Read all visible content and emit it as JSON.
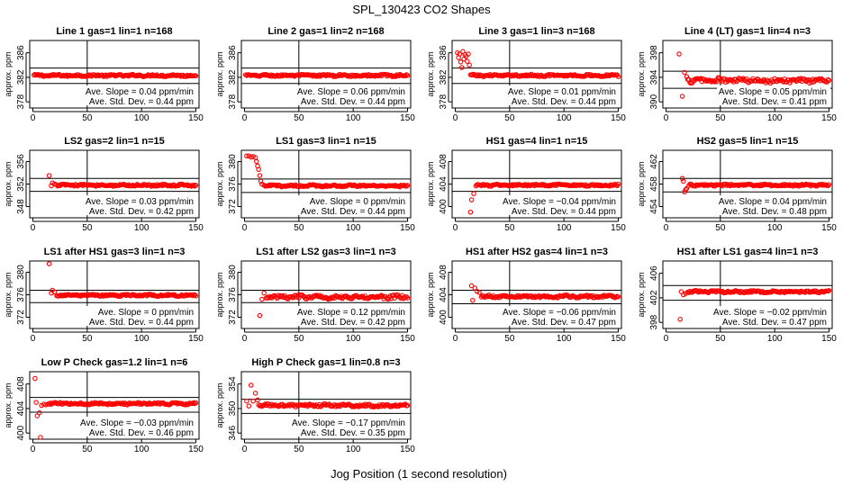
{
  "figure": {
    "title": "SPL_130423  CO2 Shapes",
    "xlabel": "Jog Position (1 second resolution)"
  },
  "chart_data": [
    {
      "type": "scatter",
      "title": "Line 1 gas=1 lin=1 n=168",
      "ylabel": "approx. ppm",
      "xlim": [
        0,
        150
      ],
      "xticks": [
        0,
        50,
        100,
        150
      ],
      "ylim": [
        377,
        388
      ],
      "yticks": [
        378,
        382,
        386
      ],
      "hlines": [
        383.5,
        381.0
      ],
      "vline": 50,
      "slope": "Ave. Slope = 0.04  ppm/min",
      "sd": "Ave. Std. Dev. = 0.44  ppm",
      "base": 382.3,
      "noise": 0.15,
      "startX": 1,
      "points": []
    },
    {
      "type": "scatter",
      "title": "Line 2 gas=1 lin=2 n=168",
      "ylabel": "approx. ppm",
      "xlim": [
        0,
        150
      ],
      "xticks": [
        0,
        50,
        100,
        150
      ],
      "ylim": [
        377,
        388
      ],
      "yticks": [
        378,
        382,
        386
      ],
      "hlines": [
        383.5,
        381.0
      ],
      "vline": 50,
      "slope": "Ave. Slope = 0.06  ppm/min",
      "sd": "Ave. Std. Dev. = 0.44  ppm",
      "base": 382.3,
      "noise": 0.15,
      "startX": 1,
      "points": []
    },
    {
      "type": "scatter",
      "title": "Line 3 gas=1 lin=3 n=168",
      "ylabel": "approx. ppm",
      "xlim": [
        0,
        150
      ],
      "xticks": [
        0,
        50,
        100,
        150
      ],
      "ylim": [
        377,
        388
      ],
      "yticks": [
        378,
        382,
        386
      ],
      "hlines": [
        383.5,
        381.0
      ],
      "vline": 50,
      "slope": "Ave. Slope = 0.01  ppm/min",
      "sd": "Ave. Std. Dev. = 0.44  ppm",
      "base": 382.3,
      "noise": 0.15,
      "startX": 14,
      "points": [
        [
          2,
          386.0
        ],
        [
          3,
          385.2
        ],
        [
          4,
          385.8
        ],
        [
          5,
          384.5
        ],
        [
          6,
          383.6
        ],
        [
          7,
          386.2
        ],
        [
          8,
          385.0
        ],
        [
          9,
          385.7
        ],
        [
          10,
          385.4
        ],
        [
          11,
          384.6
        ],
        [
          12,
          385.8
        ],
        [
          13,
          384.0
        ]
      ]
    },
    {
      "type": "scatter",
      "title": "Line 4 (LT) gas=1 lin=4 n=3",
      "ylabel": "approx. ppm",
      "xlim": [
        0,
        150
      ],
      "xticks": [
        0,
        50,
        100,
        150
      ],
      "ylim": [
        389,
        400
      ],
      "yticks": [
        390,
        394,
        398
      ],
      "hlines": [
        395.0,
        392.2
      ],
      "vline": 50,
      "slope": "Ave. Slope = 0.05  ppm/min",
      "sd": "Ave. Std. Dev. = 0.41  ppm",
      "base": 393.5,
      "noise": 0.35,
      "startX": 20,
      "points": [
        [
          12,
          397.8
        ],
        [
          15,
          390.9
        ],
        [
          17,
          394.8
        ],
        [
          19,
          394.1
        ]
      ]
    },
    {
      "type": "scatter",
      "title": "LS2 gas=2 lin=1 n=15",
      "ylabel": "approx. ppm",
      "xlim": [
        0,
        150
      ],
      "xticks": [
        0,
        50,
        100,
        150
      ],
      "ylim": [
        346,
        358
      ],
      "yticks": [
        348,
        352,
        356
      ],
      "hlines": [
        353.0,
        350.7
      ],
      "vline": 50,
      "slope": "Ave. Slope = 0.03  ppm/min",
      "sd": "Ave. Std. Dev. = 0.42  ppm",
      "base": 351.8,
      "noise": 0.15,
      "startX": 22,
      "points": [
        [
          15,
          353.5
        ],
        [
          17,
          351.7
        ],
        [
          18,
          352.2
        ],
        [
          20,
          352.0
        ]
      ]
    },
    {
      "type": "scatter",
      "title": "LS1 gas=3 lin=1 n=15",
      "ylabel": "approx. ppm",
      "xlim": [
        0,
        150
      ],
      "xticks": [
        0,
        50,
        100,
        150
      ],
      "ylim": [
        370,
        382
      ],
      "yticks": [
        372,
        376,
        380
      ],
      "hlines": [
        376.9,
        374.5
      ],
      "vline": 50,
      "slope": "Ave. Slope = 0  ppm/min",
      "sd": "Ave. Std. Dev. = 0.44  ppm",
      "base": 375.7,
      "noise": 0.15,
      "startX": 18,
      "points": [
        [
          2,
          381.0
        ],
        [
          4,
          381.0
        ],
        [
          6,
          380.8
        ],
        [
          8,
          380.9
        ],
        [
          10,
          380.7
        ],
        [
          11,
          380.0
        ],
        [
          12,
          379.2
        ],
        [
          13,
          378.6
        ],
        [
          14,
          377.5
        ],
        [
          15,
          376.5
        ],
        [
          16,
          376.0
        ]
      ]
    },
    {
      "type": "scatter",
      "title": "HS1 gas=4 lin=1 n=15",
      "ylabel": "approx. ppm",
      "xlim": [
        0,
        150
      ],
      "xticks": [
        0,
        50,
        100,
        150
      ],
      "ylim": [
        398,
        410
      ],
      "yticks": [
        400,
        404,
        408
      ],
      "hlines": [
        405.0,
        402.7
      ],
      "vline": 50,
      "slope": "Ave. Slope = −0.04  ppm/min",
      "sd": "Ave. Std. Dev. = 0.44  ppm",
      "base": 403.8,
      "noise": 0.15,
      "startX": 19,
      "points": [
        [
          14,
          399.0
        ],
        [
          15,
          401.2
        ],
        [
          17,
          402.3
        ]
      ]
    },
    {
      "type": "scatter",
      "title": "HS2 gas=5 lin=1 n=15",
      "ylabel": "approx. ppm",
      "xlim": [
        0,
        150
      ],
      "xticks": [
        0,
        50,
        100,
        150
      ],
      "ylim": [
        452,
        464
      ],
      "yticks": [
        454,
        458,
        462
      ],
      "hlines": [
        459.0,
        456.6
      ],
      "vline": 50,
      "slope": "Ave. Slope = 0.04  ppm/min",
      "sd": "Ave. Std. Dev. = 0.48  ppm",
      "base": 457.8,
      "noise": 0.15,
      "startX": 21,
      "points": [
        [
          15,
          459.0
        ],
        [
          16,
          458.5
        ],
        [
          17,
          456.6
        ],
        [
          18,
          457.0
        ],
        [
          19,
          457.2
        ]
      ]
    },
    {
      "type": "scatter",
      "title": "LS1 after HS1 gas=3 lin=1 n=3",
      "ylabel": "approx. ppm",
      "xlim": [
        0,
        150
      ],
      "xticks": [
        0,
        50,
        100,
        150
      ],
      "ylim": [
        370,
        382
      ],
      "yticks": [
        372,
        376,
        380
      ],
      "hlines": [
        376.8,
        374.6
      ],
      "vline": 50,
      "slope": "Ave. Slope = 0  ppm/min",
      "sd": "Ave. Std. Dev. = 0.44  ppm",
      "base": 375.9,
      "noise": 0.15,
      "startX": 22,
      "points": [
        [
          15,
          381.5
        ],
        [
          17,
          376.3
        ],
        [
          18,
          376.8
        ],
        [
          20,
          376.5
        ]
      ]
    },
    {
      "type": "scatter",
      "title": "LS1 after LS2 gas=3 lin=1 n=3",
      "ylabel": "approx. ppm",
      "xlim": [
        0,
        150
      ],
      "xticks": [
        0,
        50,
        100,
        150
      ],
      "ylim": [
        370,
        382
      ],
      "yticks": [
        372,
        376,
        380
      ],
      "hlines": [
        376.8,
        374.6
      ],
      "vline": 50,
      "slope": "Ave. Slope = 0.12  ppm/min",
      "sd": "Ave. Std. Dev. = 0.42  ppm",
      "base": 375.6,
      "noise": 0.3,
      "startX": 20,
      "points": [
        [
          14,
          372.3
        ],
        [
          16,
          375.2
        ],
        [
          18,
          376.3
        ]
      ]
    },
    {
      "type": "scatter",
      "title": "HS1 after HS2 gas=4 lin=1 n=3",
      "ylabel": "approx. ppm",
      "xlim": [
        0,
        150
      ],
      "xticks": [
        0,
        50,
        100,
        150
      ],
      "ylim": [
        398,
        410
      ],
      "yticks": [
        400,
        404,
        408
      ],
      "hlines": [
        404.8,
        402.4
      ],
      "vline": 50,
      "slope": "Ave. Slope = −0.06  ppm/min",
      "sd": "Ave. Std. Dev. = 0.47  ppm",
      "base": 403.7,
      "noise": 0.2,
      "startX": 24,
      "points": [
        [
          15,
          405.6
        ],
        [
          16,
          403.0
        ],
        [
          18,
          405.2
        ],
        [
          20,
          404.6
        ],
        [
          22,
          404.4
        ]
      ]
    },
    {
      "type": "scatter",
      "title": "HS1 after LS1 gas=4 lin=1 n=3",
      "ylabel": "approx. ppm",
      "xlim": [
        0,
        150
      ],
      "xticks": [
        0,
        50,
        100,
        150
      ],
      "ylim": [
        397,
        408
      ],
      "yticks": [
        398,
        402,
        406
      ],
      "hlines": [
        404.0,
        401.6
      ],
      "vline": 50,
      "slope": "Ave. Slope = −0.02  ppm/min",
      "sd": "Ave. Std. Dev. = 0.47  ppm",
      "base": 403.0,
      "noise": 0.15,
      "startX": 20,
      "points": [
        [
          13,
          398.5
        ],
        [
          14,
          403.0
        ],
        [
          16,
          402.5
        ],
        [
          18,
          402.7
        ]
      ]
    },
    {
      "type": "scatter",
      "title": "Low P Check gas=1.2 lin=1 n=6",
      "ylabel": "approx. ppm",
      "xlim": [
        0,
        150
      ],
      "xticks": [
        0,
        50,
        100,
        150
      ],
      "ylim": [
        399,
        410
      ],
      "yticks": [
        400,
        404,
        408
      ],
      "hlines": [
        405.8,
        403.4
      ],
      "vline": 50,
      "slope": "Ave. Slope = −0.03  ppm/min",
      "sd": "Ave. Std. Dev. = 0.46  ppm",
      "base": 404.8,
      "noise": 0.15,
      "startX": 14,
      "points": [
        [
          2,
          408.9
        ],
        [
          3,
          405.0
        ],
        [
          4,
          402.8
        ],
        [
          6,
          403.3
        ],
        [
          7,
          399.3
        ],
        [
          8,
          404.5
        ],
        [
          10,
          404.7
        ],
        [
          12,
          404.6
        ]
      ]
    },
    {
      "type": "scatter",
      "title": "High P Check gas=1 lin=0.8 n=3",
      "ylabel": "approx. ppm",
      "xlim": [
        0,
        150
      ],
      "xticks": [
        0,
        50,
        100,
        150
      ],
      "ylim": [
        345,
        356
      ],
      "yticks": [
        346,
        350,
        354
      ],
      "hlines": [
        351.5,
        349.2
      ],
      "vline": 50,
      "slope": "Ave. Slope = −0.17  ppm/min",
      "sd": "Ave. Std. Dev. = 0.35  ppm",
      "base": 350.5,
      "noise": 0.2,
      "startX": 14,
      "points": [
        [
          2,
          351.2
        ],
        [
          4,
          350.4
        ],
        [
          6,
          353.8
        ],
        [
          8,
          351.2
        ],
        [
          10,
          352.5
        ],
        [
          12,
          351.4
        ],
        [
          13,
          350.6
        ]
      ]
    }
  ]
}
